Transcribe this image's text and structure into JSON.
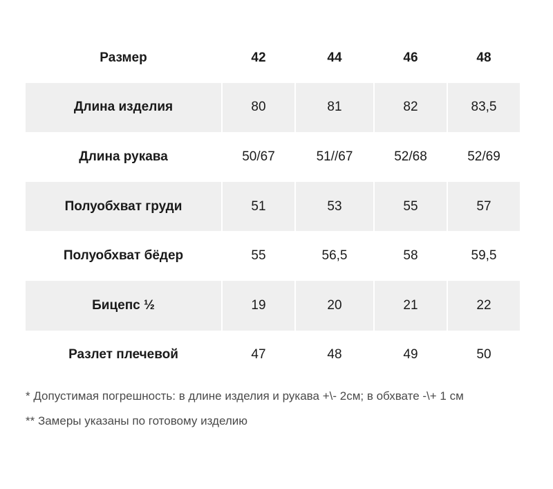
{
  "table": {
    "header": {
      "label": "Размер",
      "sizes": [
        "42",
        "44",
        "46",
        "48"
      ]
    },
    "rows": [
      {
        "label": "Длина изделия",
        "values": [
          "80",
          "81",
          "82",
          "83,5"
        ]
      },
      {
        "label": "Длина рукава",
        "values": [
          "50/67",
          "51//67",
          "52/68",
          "52/69"
        ]
      },
      {
        "label": "Полуобхват груди",
        "values": [
          "51",
          "53",
          "55",
          "57"
        ]
      },
      {
        "label": "Полуобхват бёдер",
        "values": [
          "55",
          "56,5",
          "58",
          "59,5"
        ]
      },
      {
        "label": "Бицепс ½",
        "values": [
          "19",
          "20",
          "21",
          "22"
        ]
      },
      {
        "label": "Разлет плечевой",
        "values": [
          "47",
          "48",
          "49",
          "50"
        ]
      }
    ]
  },
  "notes": [
    "* Допустимая погрешность: в длине изделия и рукава +\\- 2см; в обхвате -\\+ 1 см",
    "** Замеры указаны по готовому изделию"
  ]
}
